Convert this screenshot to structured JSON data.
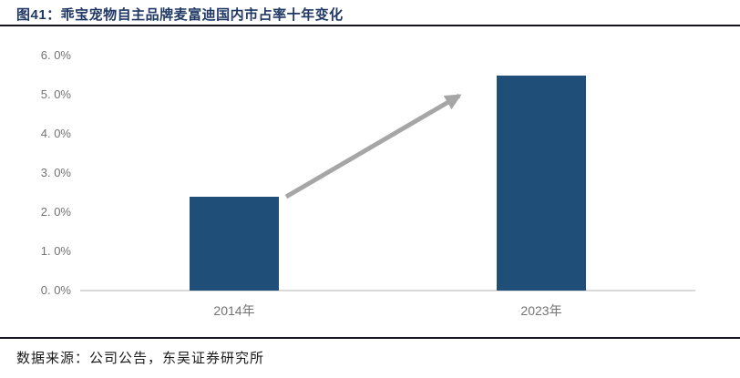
{
  "header": {
    "title": "图41：乖宝宠物自主品牌麦富迪国内市占率十年变化"
  },
  "footer": {
    "source": "数据来源：公司公告，东吴证券研究所"
  },
  "colors": {
    "bar": "#1F4E79",
    "titleText": "#1F3864",
    "rule": "#14141c",
    "axisLine": "#D9D9D9",
    "tickLabel": "#737373",
    "arrow": "#A6A6A6"
  },
  "chart_data": {
    "type": "bar",
    "title": "乖宝宠物自主品牌麦富迪国内市占率十年变化",
    "categories": [
      "2014年",
      "2023年"
    ],
    "values": [
      2.4,
      5.5
    ],
    "unit": "%",
    "xlabel": "",
    "ylabel": "",
    "ylim": [
      0,
      6
    ],
    "ytick_step": 1,
    "ytick_labels": [
      "0. 0%",
      "1. 0%",
      "2. 0%",
      "3. 0%",
      "4. 0%",
      "5. 0%",
      "6. 0%"
    ],
    "grid": false,
    "legend": "none",
    "annotations": [
      "upward growth arrow from 2014 bar to 2023 bar"
    ]
  }
}
